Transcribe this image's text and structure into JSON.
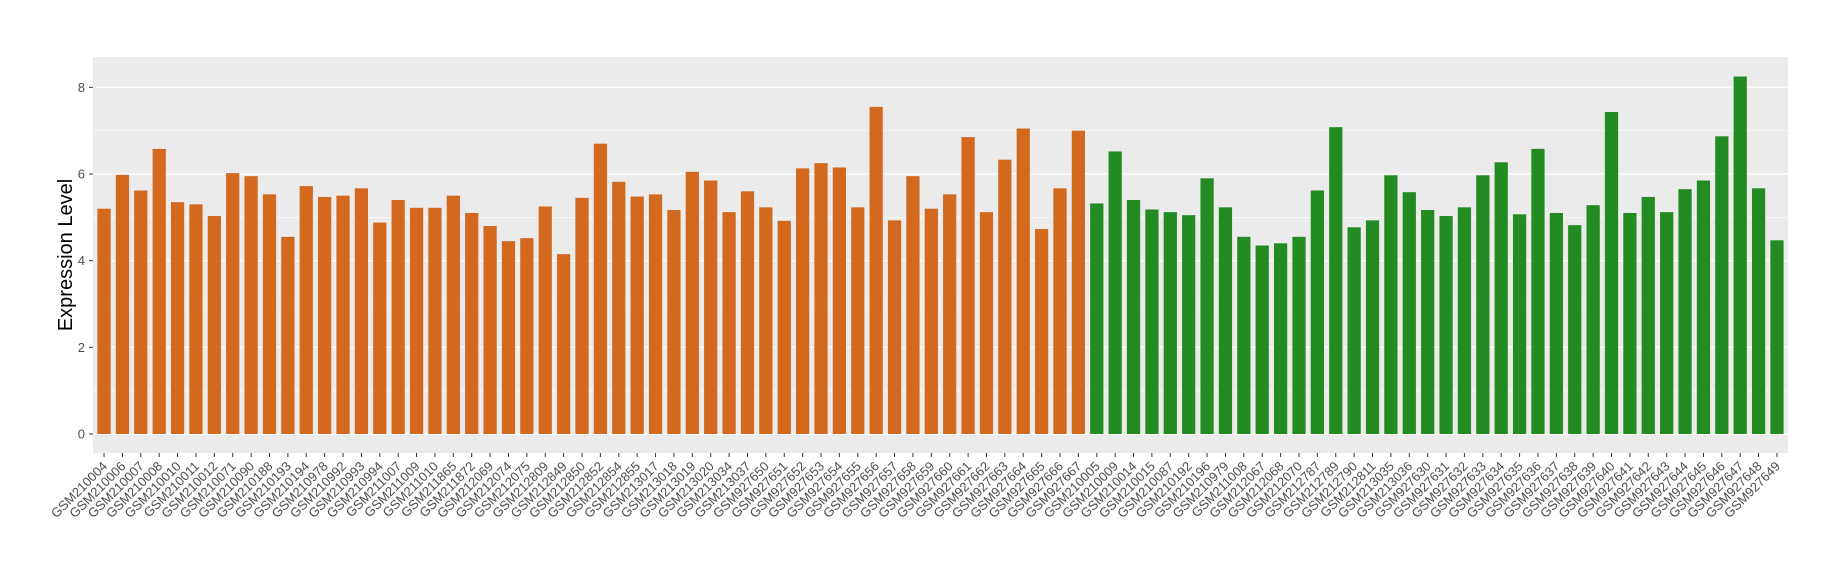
{
  "chart_data": {
    "type": "bar",
    "title": "",
    "xlabel": "",
    "ylabel": "Expression Level",
    "ylim": [
      0,
      8.7
    ],
    "yticks": [
      0,
      2,
      4,
      6,
      8
    ],
    "grid": true,
    "legend": "none",
    "colors": {
      "group_a": "#D2691E",
      "group_b": "#228B22",
      "panel_bg": "#EBEBEB",
      "grid": "#FFFFFF"
    },
    "categories": [
      "GSM210004",
      "GSM210006",
      "GSM210007",
      "GSM210008",
      "GSM210010",
      "GSM210011",
      "GSM210012",
      "GSM210071",
      "GSM210090",
      "GSM210188",
      "GSM210193",
      "GSM210194",
      "GSM210978",
      "GSM210992",
      "GSM210993",
      "GSM210994",
      "GSM211007",
      "GSM211009",
      "GSM211010",
      "GSM211865",
      "GSM211872",
      "GSM212069",
      "GSM212074",
      "GSM212075",
      "GSM212809",
      "GSM212849",
      "GSM212850",
      "GSM212852",
      "GSM212854",
      "GSM212855",
      "GSM213017",
      "GSM213018",
      "GSM213019",
      "GSM213020",
      "GSM213034",
      "GSM213037",
      "GSM927650",
      "GSM927651",
      "GSM927652",
      "GSM927653",
      "GSM927654",
      "GSM927655",
      "GSM927656",
      "GSM927657",
      "GSM927658",
      "GSM927659",
      "GSM927660",
      "GSM927661",
      "GSM927662",
      "GSM927663",
      "GSM927664",
      "GSM927665",
      "GSM927666",
      "GSM927667",
      "GSM210005",
      "GSM210009",
      "GSM210014",
      "GSM210015",
      "GSM210087",
      "GSM210192",
      "GSM210196",
      "GSM210979",
      "GSM211008",
      "GSM212067",
      "GSM212068",
      "GSM212070",
      "GSM212787",
      "GSM212789",
      "GSM212790",
      "GSM212811",
      "GSM213035",
      "GSM213036",
      "GSM927630",
      "GSM927631",
      "GSM927632",
      "GSM927633",
      "GSM927634",
      "GSM927635",
      "GSM927636",
      "GSM927637",
      "GSM927638",
      "GSM927639",
      "GSM927640",
      "GSM927641",
      "GSM927642",
      "GSM927643",
      "GSM927644",
      "GSM927645",
      "GSM927646",
      "GSM927647",
      "GSM927648",
      "GSM927649"
    ],
    "values": [
      5.2,
      5.98,
      5.62,
      6.58,
      5.35,
      5.3,
      5.03,
      6.02,
      5.95,
      5.53,
      4.55,
      5.72,
      5.47,
      5.5,
      5.67,
      4.88,
      5.4,
      5.22,
      5.22,
      5.5,
      5.1,
      4.8,
      4.45,
      4.52,
      5.25,
      4.15,
      5.45,
      6.7,
      5.82,
      5.48,
      5.53,
      5.17,
      6.05,
      5.85,
      5.12,
      5.6,
      5.23,
      4.92,
      6.13,
      6.25,
      6.15,
      5.23,
      7.55,
      4.93,
      5.95,
      5.2,
      5.53,
      6.85,
      5.12,
      6.33,
      7.05,
      4.73,
      5.67,
      7.0,
      5.32,
      6.52,
      5.4,
      5.18,
      5.12,
      5.05,
      5.9,
      5.23,
      4.55,
      4.35,
      4.4,
      4.55,
      5.62,
      7.08,
      4.77,
      4.93,
      5.97,
      5.58,
      5.17,
      5.03,
      5.23,
      5.97,
      6.27,
      5.07,
      6.58,
      5.1,
      4.82,
      5.28,
      7.43,
      5.1,
      5.47,
      5.12,
      5.65,
      5.85,
      6.87,
      8.25,
      5.67,
      4.47
    ],
    "groups": [
      "a",
      "a",
      "a",
      "a",
      "a",
      "a",
      "a",
      "a",
      "a",
      "a",
      "a",
      "a",
      "a",
      "a",
      "a",
      "a",
      "a",
      "a",
      "a",
      "a",
      "a",
      "a",
      "a",
      "a",
      "a",
      "a",
      "a",
      "a",
      "a",
      "a",
      "a",
      "a",
      "a",
      "a",
      "a",
      "a",
      "a",
      "a",
      "a",
      "a",
      "a",
      "a",
      "a",
      "a",
      "a",
      "a",
      "a",
      "a",
      "a",
      "a",
      "a",
      "a",
      "a",
      "a",
      "b",
      "b",
      "b",
      "b",
      "b",
      "b",
      "b",
      "b",
      "b",
      "b",
      "b",
      "b",
      "b",
      "b",
      "b",
      "b",
      "b",
      "b",
      "b",
      "b",
      "b",
      "b",
      "b",
      "b",
      "b",
      "b",
      "b",
      "b",
      "b",
      "b",
      "b",
      "b",
      "b",
      "b",
      "b",
      "b",
      "b",
      "b"
    ]
  }
}
